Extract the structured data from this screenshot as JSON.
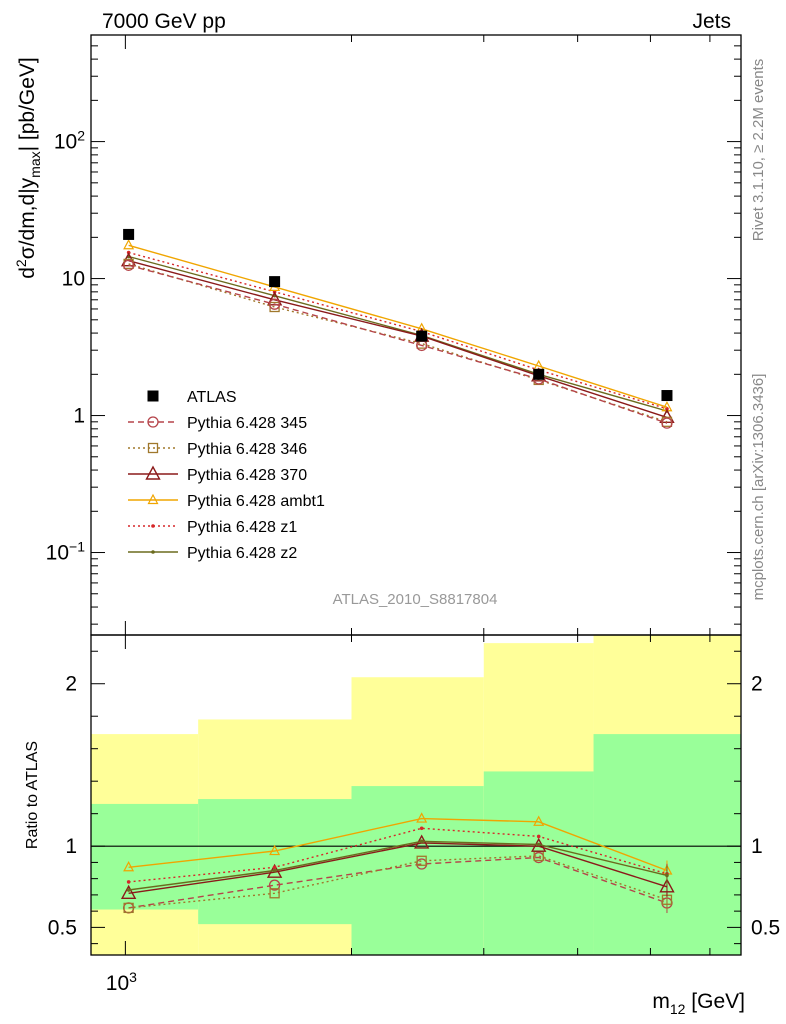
{
  "header": {
    "energy_label": "7000 GeV pp",
    "process_label": "Jets",
    "analysis_id": "ATLAS_2010_S8817804",
    "rivet_label": "Rivet 3.1.10, ≥ 2.2M events",
    "mcplots_label": "mcplots.cern.ch [arXiv:1306.3436]"
  },
  "chart_data": [
    {
      "type": "line",
      "panel": "main",
      "ylabel": "d²σ/dm,d|y_max| [pb/GeV]",
      "yscale": "log",
      "xscale": "log",
      "xlim": [
        900,
        6600
      ],
      "ylim": [
        0.025,
        600
      ],
      "y_ticks": [
        {
          "v": 0.1,
          "label": "10",
          "sup": "−1"
        },
        {
          "v": 1,
          "label": "1",
          "sup": ""
        },
        {
          "v": 10,
          "label": "10",
          "sup": ""
        },
        {
          "v": 100,
          "label": "10",
          "sup": "2"
        }
      ],
      "x": [
        1010,
        1580,
        2480,
        3550,
        5260
      ],
      "series": [
        {
          "name": "ATLAS",
          "marker": "square-filled",
          "color": "#000000",
          "line": "none",
          "values": [
            21,
            9.5,
            3.8,
            2.0,
            1.4
          ]
        },
        {
          "name": "Pythia 6.428 345",
          "marker": "circle",
          "color": "#b5444a",
          "line": "dashed",
          "values": [
            12.5,
            6.5,
            3.25,
            1.85,
            0.88
          ]
        },
        {
          "name": "Pythia 6.428 346",
          "marker": "square",
          "color": "#a0782c",
          "line": "dotted",
          "values": [
            12.8,
            6.2,
            3.35,
            1.82,
            0.9
          ]
        },
        {
          "name": "Pythia 6.428 370",
          "marker": "triangle",
          "color": "#8b1a1a",
          "line": "solid",
          "values": [
            13.5,
            7.0,
            3.8,
            1.95,
            0.97
          ]
        },
        {
          "name": "Pythia 6.428 ambt1",
          "marker": "triangle-small",
          "color": "#f0a500",
          "line": "solid",
          "values": [
            17.5,
            8.7,
            4.3,
            2.3,
            1.15
          ]
        },
        {
          "name": "Pythia 6.428 z1",
          "marker": "dot",
          "color": "#d62728",
          "line": "dotted",
          "values": [
            15.5,
            8.0,
            4.1,
            2.15,
            1.12
          ]
        },
        {
          "name": "Pythia 6.428 z2",
          "marker": "dot",
          "color": "#6b6b1e",
          "line": "solid",
          "values": [
            14.5,
            7.5,
            3.85,
            2.0,
            1.08
          ]
        }
      ]
    },
    {
      "type": "line",
      "panel": "ratio",
      "ylabel": "Ratio to ATLAS",
      "xlabel": "m₁₂ [GeV]",
      "xlim": [
        900,
        6600
      ],
      "ylim": [
        0.33,
        2.3
      ],
      "y_ticks": [
        0.5,
        1,
        2
      ],
      "x_tick_label": {
        "v": 1000,
        "label": "10",
        "sup": "3"
      },
      "bands": {
        "bin_edges": [
          900,
          1250,
          2000,
          3000,
          4200,
          6600
        ],
        "stat_low": [
          0.61,
          0.52,
          0.33,
          0.33,
          0.33
        ],
        "stat_high": [
          1.26,
          1.29,
          1.37,
          1.46,
          1.69
        ],
        "total_low": [
          0.33,
          0.33,
          0.33,
          0.33,
          0.33
        ],
        "total_high": [
          1.69,
          1.78,
          2.04,
          2.25,
          2.3
        ],
        "inner_color": "#99ff99",
        "outer_color": "#ffff99"
      },
      "x": [
        1010,
        1580,
        2480,
        3550,
        5260
      ],
      "series": [
        {
          "name": "Pythia 6.428 345",
          "values": [
            0.62,
            0.76,
            0.89,
            0.93,
            0.65
          ]
        },
        {
          "name": "Pythia 6.428 346",
          "values": [
            0.62,
            0.71,
            0.91,
            0.94,
            0.67
          ]
        },
        {
          "name": "Pythia 6.428 370",
          "values": [
            0.71,
            0.84,
            1.02,
            1.0,
            0.75
          ]
        },
        {
          "name": "Pythia 6.428 ambt1",
          "values": [
            0.87,
            0.97,
            1.17,
            1.15,
            0.85
          ]
        },
        {
          "name": "Pythia 6.428 z1",
          "values": [
            0.78,
            0.87,
            1.11,
            1.06,
            0.83
          ]
        },
        {
          "name": "Pythia 6.428 z2",
          "values": [
            0.73,
            0.85,
            1.03,
            1.01,
            0.82
          ]
        }
      ]
    }
  ]
}
